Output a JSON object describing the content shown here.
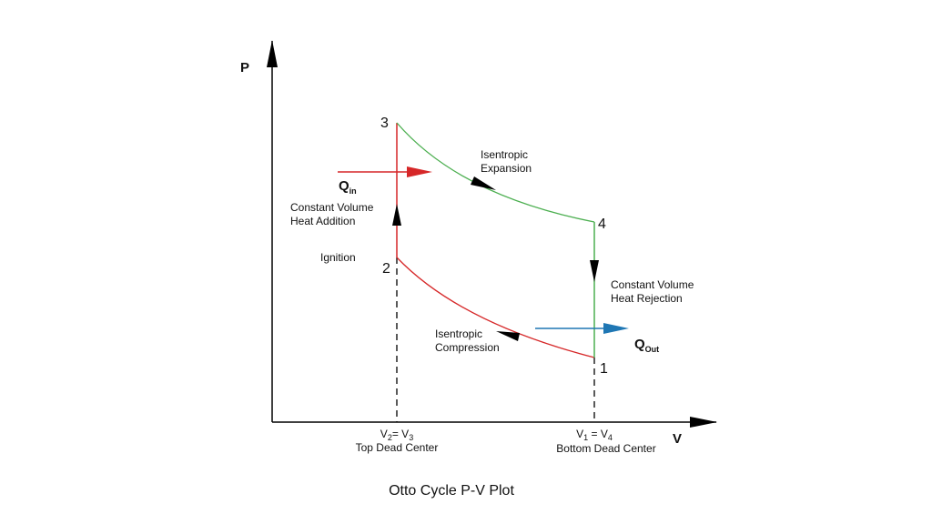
{
  "axes": {
    "y_label": "P",
    "x_label": "V"
  },
  "points": [
    "1",
    "2",
    "3",
    "4"
  ],
  "labels": {
    "isentropic_expansion": [
      "Isentropic",
      "Expansion"
    ],
    "heat_in": {
      "main": "Q",
      "sub": "in"
    },
    "heat_addition": [
      "Constant Volume",
      "Heat Addition"
    ],
    "ignition": "Ignition",
    "isentropic_compression": [
      "Isentropic",
      "Compression"
    ],
    "heat_rejection": [
      "Constant Volume",
      "Heat Rejection"
    ],
    "heat_out": {
      "main": "Q",
      "sub": "Out"
    },
    "tdc_volume": [
      "V",
      "2",
      "= V",
      "3"
    ],
    "tdc": "Top Dead Center",
    "bdc_volume": [
      "V",
      "1",
      " = V",
      "4"
    ],
    "bdc": "Bottom Dead Center"
  },
  "title": "Otto Cycle P-V Plot"
}
